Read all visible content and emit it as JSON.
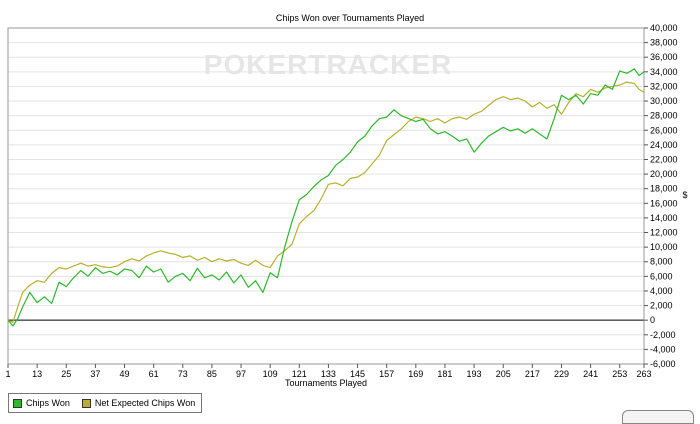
{
  "chart_data": {
    "type": "line",
    "title": "Chips Won over Tournaments Played",
    "xlabel": "Tournaments Played",
    "ylabel": "$",
    "watermark": "POKERTRACKER",
    "xlim": [
      1,
      263
    ],
    "ylim": [
      -6000,
      40000
    ],
    "x_ticks": [
      "1",
      "13",
      "25",
      "37",
      "49",
      "61",
      "73",
      "85",
      "97",
      "109",
      "121",
      "133",
      "145",
      "157",
      "169",
      "181",
      "193",
      "205",
      "217",
      "229",
      "241",
      "253",
      "263"
    ],
    "y_ticks": [
      -6000,
      -4000,
      -2000,
      0,
      2000,
      4000,
      6000,
      8000,
      10000,
      12000,
      14000,
      16000,
      18000,
      20000,
      22000,
      24000,
      26000,
      28000,
      30000,
      32000,
      34000,
      36000,
      38000,
      40000
    ],
    "y_tick_labels": [
      "-6,000",
      "-4,000",
      "-2,000",
      "0",
      "2,000",
      "4,000",
      "6,000",
      "8,000",
      "10,000",
      "12,000",
      "14,000",
      "16,000",
      "18,000",
      "20,000",
      "22,000",
      "24,000",
      "26,000",
      "28,000",
      "30,000",
      "32,000",
      "34,000",
      "36,000",
      "38,000",
      "40,000"
    ],
    "grid": true,
    "legend_position": "bottom-left",
    "series": [
      {
        "name": "Chips Won",
        "color": "#2db82d",
        "x": [
          1,
          3,
          5,
          7,
          10,
          13,
          16,
          19,
          22,
          25,
          28,
          31,
          34,
          37,
          40,
          43,
          46,
          49,
          52,
          55,
          58,
          61,
          64,
          67,
          70,
          73,
          76,
          79,
          82,
          85,
          88,
          91,
          94,
          97,
          100,
          103,
          106,
          109,
          112,
          115,
          118,
          121,
          124,
          127,
          130,
          133,
          136,
          139,
          142,
          145,
          148,
          151,
          154,
          157,
          160,
          163,
          166,
          169,
          172,
          175,
          178,
          181,
          184,
          187,
          190,
          193,
          196,
          199,
          202,
          205,
          208,
          211,
          214,
          217,
          220,
          223,
          226,
          229,
          232,
          235,
          238,
          241,
          244,
          247,
          250,
          253,
          256,
          259,
          261,
          263
        ],
        "y": [
          0,
          -800,
          200,
          1800,
          3800,
          2400,
          3200,
          2300,
          5200,
          4600,
          5800,
          6800,
          6000,
          7200,
          6400,
          6700,
          6200,
          7000,
          6800,
          5800,
          7400,
          6600,
          7000,
          5200,
          6000,
          6400,
          5400,
          7100,
          5800,
          6200,
          5500,
          6600,
          5100,
          6200,
          4500,
          5400,
          3800,
          6500,
          5800,
          10000,
          13500,
          16500,
          17200,
          18300,
          19200,
          19800,
          21200,
          22000,
          23000,
          24400,
          25200,
          26600,
          27600,
          27800,
          28800,
          28000,
          27600,
          27200,
          27500,
          26200,
          25500,
          25800,
          25200,
          24500,
          24800,
          23000,
          24200,
          25200,
          25800,
          26400,
          25900,
          26200,
          25600,
          26200,
          25500,
          24800,
          27600,
          30800,
          30200,
          30800,
          29600,
          31000,
          30800,
          32200,
          31600,
          34100,
          33800,
          34400,
          33500,
          34000
        ]
      },
      {
        "name": "Net Expected Chips Won",
        "color": "#b8b02e",
        "x": [
          1,
          3,
          5,
          7,
          10,
          13,
          16,
          19,
          22,
          25,
          28,
          31,
          34,
          37,
          40,
          43,
          46,
          49,
          52,
          55,
          58,
          61,
          64,
          67,
          70,
          73,
          76,
          79,
          82,
          85,
          88,
          91,
          94,
          97,
          100,
          103,
          106,
          109,
          112,
          115,
          118,
          121,
          124,
          127,
          130,
          133,
          136,
          139,
          142,
          145,
          148,
          151,
          154,
          157,
          160,
          163,
          166,
          169,
          172,
          175,
          178,
          181,
          184,
          187,
          190,
          193,
          196,
          199,
          202,
          205,
          208,
          211,
          214,
          217,
          220,
          223,
          226,
          229,
          232,
          235,
          238,
          241,
          244,
          247,
          250,
          253,
          256,
          259,
          261,
          263
        ],
        "y": [
          0,
          -300,
          1800,
          3800,
          4800,
          5400,
          5200,
          6400,
          7200,
          7000,
          7400,
          7800,
          7400,
          7600,
          7300,
          7200,
          7400,
          8000,
          8400,
          8100,
          8800,
          9200,
          9500,
          9200,
          9000,
          8600,
          8800,
          8200,
          8600,
          8000,
          8400,
          8100,
          8300,
          7800,
          7500,
          8200,
          7500,
          7200,
          8800,
          9500,
          10400,
          13200,
          14200,
          15000,
          16600,
          18600,
          18800,
          18400,
          19400,
          19600,
          20200,
          21400,
          22600,
          24600,
          25400,
          26200,
          27200,
          27800,
          27600,
          27200,
          27600,
          27000,
          27600,
          27800,
          27500,
          28200,
          28600,
          29400,
          30200,
          30600,
          30200,
          30400,
          30000,
          29200,
          29800,
          29000,
          29500,
          28200,
          29800,
          31000,
          30600,
          31600,
          31200,
          31800,
          32000,
          32200,
          32600,
          32400,
          31600,
          31200
        ]
      }
    ]
  }
}
